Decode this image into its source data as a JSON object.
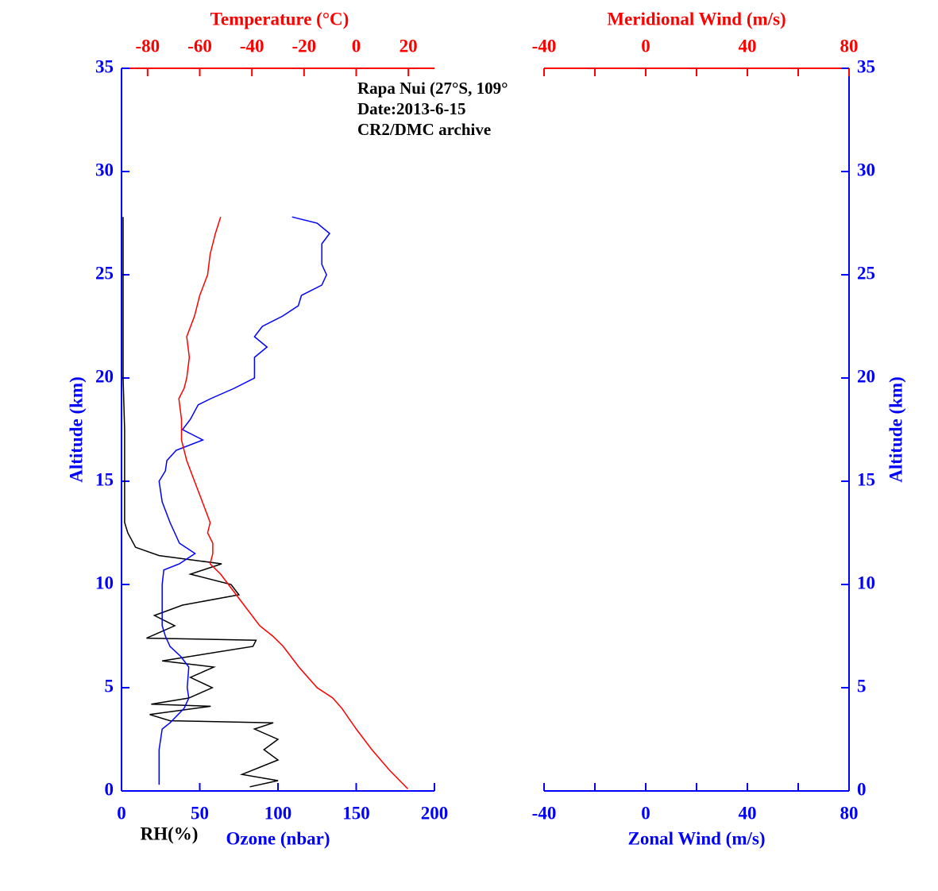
{
  "chart_data": [
    {
      "type": "line",
      "annotations": [
        "Rapa Nui (27°S, 109°",
        "Date:2013-6-15",
        "CR2/DMC archive"
      ],
      "ylabel": "Altitude (km)",
      "ylim": [
        0,
        35
      ],
      "yticks": [
        0,
        5,
        10,
        15,
        20,
        25,
        30,
        35
      ],
      "xlabel": "Ozone (nbar)",
      "rh_label": "RH(%)",
      "xlim": [
        0,
        200
      ],
      "xticks": [
        0,
        50,
        100,
        150,
        200
      ],
      "xcolor": "#0000ff",
      "toplabel": "Temperature (°C)",
      "toplim": [
        -90,
        30
      ],
      "topticks": [
        -80,
        -60,
        -40,
        -20,
        0,
        20
      ],
      "topcolor": "#ff0000",
      "series": [
        {
          "color": "#000000",
          "axis": "x",
          "altitude": [
            0.2,
            0.5,
            0.8,
            1.5,
            2,
            2.5,
            3,
            3.3,
            3.4,
            3.7,
            4.1,
            4.2,
            4.5,
            5,
            5.5,
            6,
            6.3,
            7,
            7.3,
            7.4,
            8,
            8.5,
            9,
            9.5,
            10,
            10.5,
            11,
            11.4,
            11.8,
            12.5,
            13,
            17.5,
            20,
            23,
            27.8
          ],
          "values": [
            82,
            100,
            77,
            100,
            91,
            100,
            85,
            97,
            31,
            18,
            57,
            19,
            43,
            58,
            44,
            59,
            26,
            84,
            86,
            16,
            34,
            21,
            39,
            75,
            70,
            44,
            64,
            24,
            9,
            4,
            2,
            2,
            1,
            1,
            1
          ]
        },
        {
          "color": "#0000ff",
          "axis": "x",
          "altitude": [
            0.3,
            2,
            3,
            3.3,
            4,
            4.5,
            5,
            6,
            6.5,
            7,
            7.5,
            8,
            9,
            10,
            10.7,
            11,
            11.5,
            12,
            12.5,
            13,
            14,
            15,
            15.5,
            16,
            16.5,
            17,
            17.5,
            18,
            18.7,
            19,
            19.5,
            20,
            21,
            21.5,
            22,
            22.5,
            23,
            23.5,
            24,
            24.5,
            25,
            25.5,
            26,
            26.5,
            27,
            27.5,
            27.8
          ],
          "values": [
            24,
            24,
            26,
            31,
            40,
            43,
            42,
            43,
            38,
            31,
            28,
            26,
            26,
            26,
            27,
            37,
            47,
            37,
            34,
            31,
            26,
            24,
            28,
            29,
            35,
            52,
            39,
            44,
            49,
            57,
            72,
            85,
            85,
            93,
            85,
            90,
            103,
            113,
            115,
            128,
            131,
            128,
            128,
            128,
            133,
            125,
            109
          ]
        },
        {
          "color": "#ff0000",
          "axis": "top",
          "altitude": [
            0.1,
            1,
            2,
            3,
            4,
            4.5,
            5,
            6,
            7,
            7.5,
            8,
            9,
            10,
            10.5,
            11,
            11.5,
            12,
            12.5,
            13,
            14,
            15,
            16,
            17,
            18,
            19,
            19.5,
            20,
            21,
            22,
            23,
            24,
            25,
            26,
            27,
            27.8
          ],
          "values": [
            19.8,
            12.8,
            6,
            0,
            -5.5,
            -9,
            -15,
            -22,
            -28,
            -32,
            -37,
            -43,
            -49,
            -52,
            -56,
            -55,
            -55,
            -57,
            -56,
            -59,
            -62,
            -65,
            -67,
            -67,
            -68,
            -66,
            -65,
            -64,
            -65,
            -62,
            -60,
            -57,
            -56,
            -54,
            -52
          ]
        }
      ]
    },
    {
      "type": "line",
      "ylabel": "Altitude (km)",
      "ylim": [
        0,
        35
      ],
      "yticks": [
        0,
        5,
        10,
        15,
        20,
        25,
        30,
        35
      ],
      "xlabel": "Zonal Wind (m/s)",
      "xlim": [
        -40,
        80
      ],
      "xticks": [
        -40,
        0,
        40,
        80
      ],
      "minor_xticks": [
        -20,
        20,
        60
      ],
      "xcolor": "#0000ff",
      "toplabel": "Meridional Wind (m/s)",
      "toplim": [
        -40,
        80
      ],
      "topticks": [
        -40,
        0,
        40,
        80
      ],
      "minor_topticks": [
        -20,
        20,
        60
      ],
      "topcolor": "#ff0000",
      "series": []
    }
  ]
}
